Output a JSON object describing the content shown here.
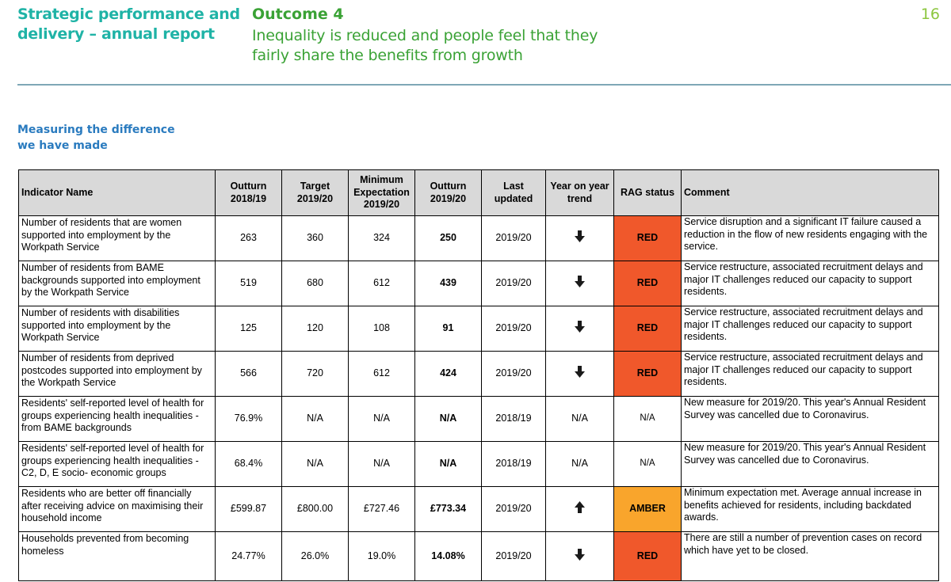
{
  "header": {
    "report_title": "Strategic performance and delivery – annual report",
    "outcome_label": "Outcome 4",
    "outcome_description": "Inequality is reduced and people feel that they fairly share the benefits from growth",
    "page_number": "16"
  },
  "section": {
    "heading_line1": "Measuring the difference",
    "heading_line2": "we have made"
  },
  "colors": {
    "red": "#f0582b",
    "amber": "#f9a52c",
    "header_grey": "#d9d9d9",
    "title_teal": "#1fb3a6",
    "outcome_green": "#3aa235"
  },
  "table": {
    "headers": {
      "indicator": "Indicator Name",
      "outturn_prev": "Outturn 2018/19",
      "target": "Target 2019/20",
      "minimum": "Minimum Expectation 2019/20",
      "outturn_curr": "Outturn 2019/20",
      "last_updated": "Last updated",
      "trend": "Year on year trend",
      "rag": "RAG status",
      "comment": "Comment"
    },
    "rows": [
      {
        "indicator": "Number of residents that are women supported into employment by the Workpath Service",
        "outturn_prev": "263",
        "target": "360",
        "minimum": "324",
        "outturn_curr": "250",
        "last_updated": "2019/20",
        "trend": "down",
        "trend_icon": "down-arrow-icon",
        "trend_text": "",
        "rag": "RED",
        "rag_class": "red",
        "comment": "Service disruption and a significant IT failure caused a reduction in the flow of new residents engaging with the service."
      },
      {
        "indicator": "Number of residents from BAME backgrounds supported into employment by the Workpath Service",
        "outturn_prev": "519",
        "target": "680",
        "minimum": "612",
        "outturn_curr": "439",
        "last_updated": "2019/20",
        "trend": "down",
        "trend_icon": "down-arrow-icon",
        "trend_text": "",
        "rag": "RED",
        "rag_class": "red",
        "comment": "Service restructure, associated recruitment delays and major IT challenges reduced our capacity to support residents."
      },
      {
        "indicator": "Number of residents with disabilities supported into employment by the Workpath Service",
        "outturn_prev": "125",
        "target": "120",
        "minimum": "108",
        "outturn_curr": "91",
        "last_updated": "2019/20",
        "trend": "down",
        "trend_icon": "down-arrow-icon",
        "trend_text": "",
        "rag": "RED",
        "rag_class": "red",
        "comment": "Service restructure, associated recruitment delays and major IT challenges reduced our capacity to support residents."
      },
      {
        "indicator": "Number of residents from deprived postcodes supported into employment by the Workpath Service",
        "outturn_prev": "566",
        "target": "720",
        "minimum": "612",
        "outturn_curr": "424",
        "last_updated": "2019/20",
        "trend": "down",
        "trend_icon": "down-arrow-icon",
        "trend_text": "",
        "rag": "RED",
        "rag_class": "red",
        "comment": "Service restructure, associated recruitment delays and major IT challenges reduced our capacity to support residents."
      },
      {
        "indicator": "Residents' self-reported level of health for groups experiencing health inequalities - from BAME backgrounds",
        "outturn_prev": "76.9%",
        "target": "N/A",
        "minimum": "N/A",
        "outturn_curr": "N/A",
        "last_updated": "2018/19",
        "trend": "none",
        "trend_icon": "",
        "trend_text": "N/A",
        "rag": "N/A",
        "rag_class": "na",
        "comment": "New measure for 2019/20.  This year's Annual Resident Survey was cancelled due to Coronavirus."
      },
      {
        "indicator": "Residents' self-reported level of health for groups experiencing health inequalities - C2, D, E socio- economic groups",
        "outturn_prev": "68.4%",
        "target": "N/A",
        "minimum": "N/A",
        "outturn_curr": "N/A",
        "last_updated": "2018/19",
        "trend": "none",
        "trend_icon": "",
        "trend_text": "N/A",
        "rag": "N/A",
        "rag_class": "na",
        "comment": "New measure for 2019/20.  This year's Annual Resident Survey was cancelled due to Coronavirus."
      },
      {
        "indicator": "Residents who are better off financially after receiving advice on maximising their household income",
        "outturn_prev": "£599.87",
        "target": "£800.00",
        "minimum": "£727.46",
        "outturn_curr": "£773.34",
        "last_updated": "2019/20",
        "trend": "up",
        "trend_icon": "up-arrow-icon",
        "trend_text": "",
        "rag": "AMBER",
        "rag_class": "amber",
        "comment": "Minimum expectation met.  Average annual increase in benefits achieved for residents, including backdated awards."
      },
      {
        "indicator": "Households prevented from becoming homeless",
        "outturn_prev": "24.77%",
        "target": "26.0%",
        "minimum": "19.0%",
        "outturn_curr": "14.08%",
        "last_updated": "2019/20",
        "trend": "down",
        "trend_icon": "down-arrow-icon",
        "trend_text": "",
        "rag": "RED",
        "rag_class": "red",
        "comment": "There are still a number of prevention cases on record which have yet to be closed."
      }
    ]
  }
}
